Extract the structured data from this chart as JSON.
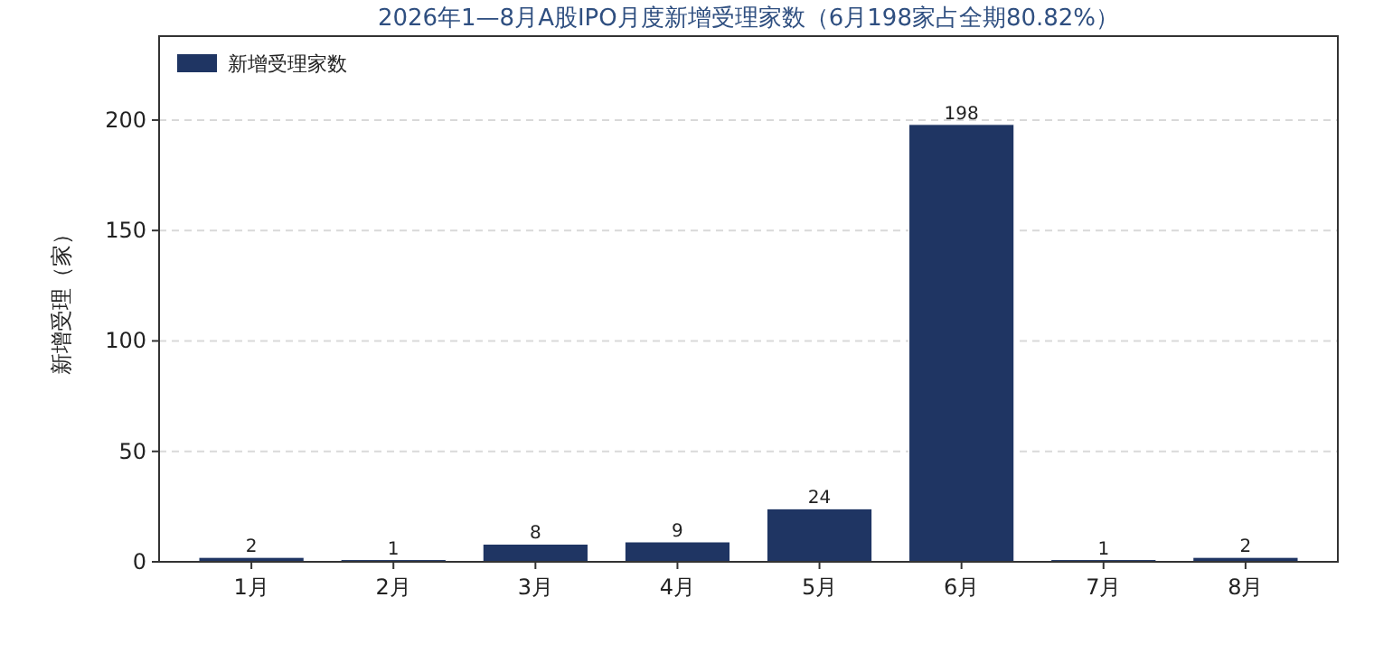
{
  "chart_data": {
    "type": "bar",
    "title": "2026年1—8月A股IPO月度新增受理家数（6月198家占全期80.82%）",
    "ylabel": "新增受理（家）",
    "categories": [
      "1月",
      "2月",
      "3月",
      "4月",
      "5月",
      "6月",
      "7月",
      "8月"
    ],
    "series": [
      {
        "name": "新增受理家数",
        "color": "#1f3563",
        "values": [
          2,
          1,
          8,
          9,
          24,
          198,
          1,
          2
        ]
      }
    ],
    "ylim": [
      0,
      238
    ],
    "yticks": [
      0,
      50,
      100,
      150,
      200
    ],
    "grid": "y",
    "legend": "top left",
    "data_labels": true
  }
}
